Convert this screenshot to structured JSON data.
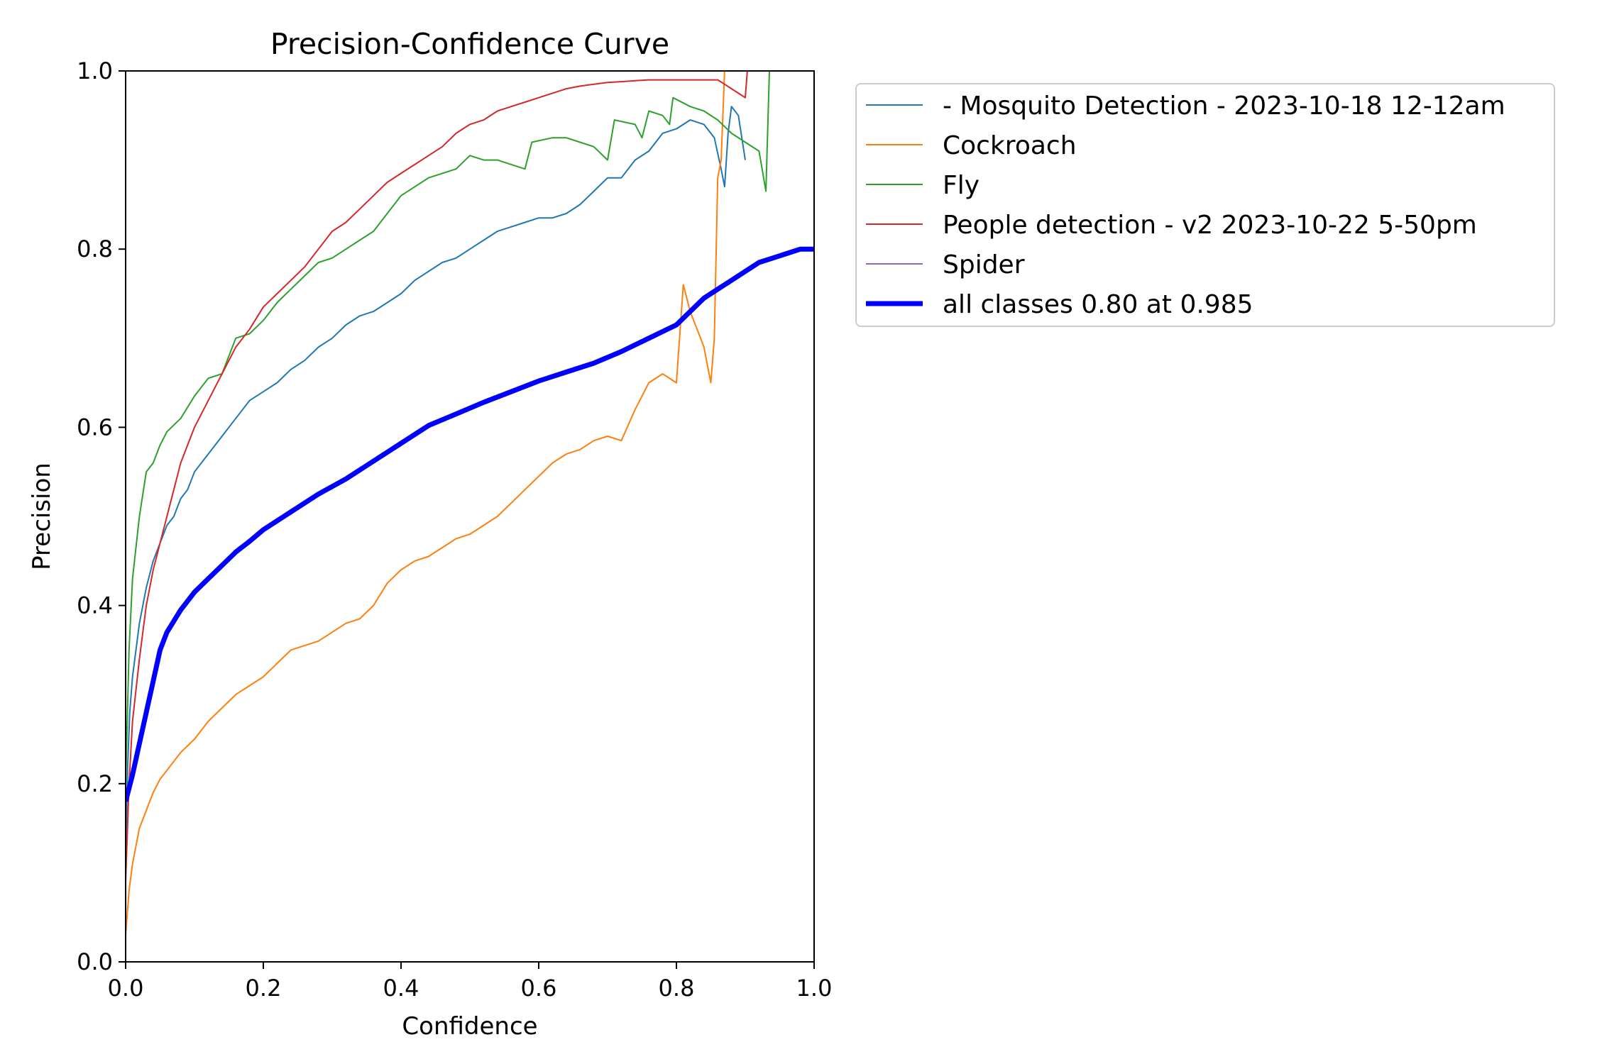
{
  "chart_data": {
    "type": "line",
    "title": "Precision-Confidence Curve",
    "xlabel": "Confidence",
    "ylabel": "Precision",
    "xlim": [
      0,
      1
    ],
    "ylim": [
      0,
      1
    ],
    "xticks": [
      "0.0",
      "0.2",
      "0.4",
      "0.6",
      "0.8",
      "1.0"
    ],
    "yticks": [
      "0.0",
      "0.2",
      "0.4",
      "0.6",
      "0.8",
      "1.0"
    ],
    "grid": false,
    "legend_position": "outside-upper-right",
    "series": [
      {
        "name": "- Mosquito Detection - 2023-10-18 12-12am",
        "color": "#1f77b4",
        "width": 2,
        "points": [
          [
            0,
            0.12
          ],
          [
            0.003,
            0.22
          ],
          [
            0.006,
            0.28
          ],
          [
            0.01,
            0.32
          ],
          [
            0.02,
            0.38
          ],
          [
            0.03,
            0.42
          ],
          [
            0.04,
            0.45
          ],
          [
            0.05,
            0.47
          ],
          [
            0.06,
            0.49
          ],
          [
            0.07,
            0.5
          ],
          [
            0.08,
            0.52
          ],
          [
            0.09,
            0.53
          ],
          [
            0.1,
            0.55
          ],
          [
            0.12,
            0.57
          ],
          [
            0.14,
            0.59
          ],
          [
            0.16,
            0.61
          ],
          [
            0.18,
            0.63
          ],
          [
            0.2,
            0.64
          ],
          [
            0.22,
            0.65
          ],
          [
            0.24,
            0.665
          ],
          [
            0.26,
            0.675
          ],
          [
            0.28,
            0.69
          ],
          [
            0.3,
            0.7
          ],
          [
            0.32,
            0.715
          ],
          [
            0.34,
            0.725
          ],
          [
            0.36,
            0.73
          ],
          [
            0.38,
            0.74
          ],
          [
            0.4,
            0.75
          ],
          [
            0.42,
            0.765
          ],
          [
            0.44,
            0.775
          ],
          [
            0.46,
            0.785
          ],
          [
            0.48,
            0.79
          ],
          [
            0.5,
            0.8
          ],
          [
            0.52,
            0.81
          ],
          [
            0.54,
            0.82
          ],
          [
            0.56,
            0.825
          ],
          [
            0.58,
            0.83
          ],
          [
            0.6,
            0.835
          ],
          [
            0.62,
            0.835
          ],
          [
            0.64,
            0.84
          ],
          [
            0.66,
            0.85
          ],
          [
            0.68,
            0.865
          ],
          [
            0.7,
            0.88
          ],
          [
            0.72,
            0.88
          ],
          [
            0.74,
            0.9
          ],
          [
            0.76,
            0.91
          ],
          [
            0.78,
            0.93
          ],
          [
            0.8,
            0.935
          ],
          [
            0.82,
            0.945
          ],
          [
            0.84,
            0.94
          ],
          [
            0.855,
            0.925
          ],
          [
            0.865,
            0.89
          ],
          [
            0.87,
            0.87
          ],
          [
            0.875,
            0.93
          ],
          [
            0.88,
            0.96
          ],
          [
            0.89,
            0.95
          ],
          [
            0.9,
            0.9
          ]
        ]
      },
      {
        "name": "Cockroach",
        "color": "#ff7f0e",
        "width": 2,
        "points": [
          [
            0,
            0.03
          ],
          [
            0.005,
            0.08
          ],
          [
            0.01,
            0.11
          ],
          [
            0.02,
            0.15
          ],
          [
            0.03,
            0.17
          ],
          [
            0.04,
            0.19
          ],
          [
            0.05,
            0.205
          ],
          [
            0.06,
            0.215
          ],
          [
            0.08,
            0.235
          ],
          [
            0.1,
            0.25
          ],
          [
            0.12,
            0.27
          ],
          [
            0.14,
            0.285
          ],
          [
            0.16,
            0.3
          ],
          [
            0.18,
            0.31
          ],
          [
            0.2,
            0.32
          ],
          [
            0.22,
            0.335
          ],
          [
            0.24,
            0.35
          ],
          [
            0.26,
            0.355
          ],
          [
            0.28,
            0.36
          ],
          [
            0.3,
            0.37
          ],
          [
            0.32,
            0.38
          ],
          [
            0.34,
            0.385
          ],
          [
            0.36,
            0.4
          ],
          [
            0.38,
            0.425
          ],
          [
            0.4,
            0.44
          ],
          [
            0.42,
            0.45
          ],
          [
            0.44,
            0.455
          ],
          [
            0.46,
            0.465
          ],
          [
            0.48,
            0.475
          ],
          [
            0.5,
            0.48
          ],
          [
            0.52,
            0.49
          ],
          [
            0.54,
            0.5
          ],
          [
            0.56,
            0.515
          ],
          [
            0.58,
            0.53
          ],
          [
            0.6,
            0.545
          ],
          [
            0.62,
            0.56
          ],
          [
            0.64,
            0.57
          ],
          [
            0.66,
            0.575
          ],
          [
            0.68,
            0.585
          ],
          [
            0.7,
            0.59
          ],
          [
            0.72,
            0.585
          ],
          [
            0.74,
            0.62
          ],
          [
            0.76,
            0.65
          ],
          [
            0.78,
            0.66
          ],
          [
            0.8,
            0.65
          ],
          [
            0.81,
            0.76
          ],
          [
            0.82,
            0.73
          ],
          [
            0.83,
            0.71
          ],
          [
            0.84,
            0.69
          ],
          [
            0.845,
            0.67
          ],
          [
            0.85,
            0.65
          ],
          [
            0.855,
            0.7
          ],
          [
            0.86,
            0.88
          ],
          [
            0.865,
            0.9
          ],
          [
            0.87,
            1.0
          ]
        ]
      },
      {
        "name": "Fly",
        "color": "#2ca02c",
        "width": 2,
        "points": [
          [
            0,
            0.2
          ],
          [
            0.005,
            0.35
          ],
          [
            0.01,
            0.43
          ],
          [
            0.02,
            0.5
          ],
          [
            0.03,
            0.55
          ],
          [
            0.04,
            0.56
          ],
          [
            0.05,
            0.58
          ],
          [
            0.06,
            0.595
          ],
          [
            0.08,
            0.61
          ],
          [
            0.1,
            0.635
          ],
          [
            0.12,
            0.655
          ],
          [
            0.14,
            0.66
          ],
          [
            0.16,
            0.7
          ],
          [
            0.18,
            0.705
          ],
          [
            0.2,
            0.72
          ],
          [
            0.22,
            0.74
          ],
          [
            0.24,
            0.755
          ],
          [
            0.26,
            0.77
          ],
          [
            0.28,
            0.785
          ],
          [
            0.3,
            0.79
          ],
          [
            0.32,
            0.8
          ],
          [
            0.34,
            0.81
          ],
          [
            0.36,
            0.82
          ],
          [
            0.38,
            0.84
          ],
          [
            0.4,
            0.86
          ],
          [
            0.42,
            0.87
          ],
          [
            0.44,
            0.88
          ],
          [
            0.46,
            0.885
          ],
          [
            0.48,
            0.89
          ],
          [
            0.5,
            0.905
          ],
          [
            0.52,
            0.9
          ],
          [
            0.54,
            0.9
          ],
          [
            0.56,
            0.895
          ],
          [
            0.58,
            0.89
          ],
          [
            0.59,
            0.92
          ],
          [
            0.62,
            0.925
          ],
          [
            0.64,
            0.925
          ],
          [
            0.66,
            0.92
          ],
          [
            0.68,
            0.915
          ],
          [
            0.7,
            0.9
          ],
          [
            0.71,
            0.945
          ],
          [
            0.74,
            0.94
          ],
          [
            0.75,
            0.925
          ],
          [
            0.76,
            0.955
          ],
          [
            0.78,
            0.95
          ],
          [
            0.79,
            0.94
          ],
          [
            0.795,
            0.97
          ],
          [
            0.82,
            0.96
          ],
          [
            0.84,
            0.955
          ],
          [
            0.86,
            0.945
          ],
          [
            0.88,
            0.93
          ],
          [
            0.9,
            0.92
          ],
          [
            0.92,
            0.91
          ],
          [
            0.93,
            0.865
          ],
          [
            0.935,
            1.0
          ]
        ]
      },
      {
        "name": "People detection - v2 2023-10-22 5-50pm",
        "color": "#d62728",
        "width": 2,
        "points": [
          [
            0,
            0.09
          ],
          [
            0.005,
            0.2
          ],
          [
            0.01,
            0.27
          ],
          [
            0.02,
            0.34
          ],
          [
            0.03,
            0.4
          ],
          [
            0.04,
            0.44
          ],
          [
            0.05,
            0.47
          ],
          [
            0.06,
            0.5
          ],
          [
            0.07,
            0.53
          ],
          [
            0.08,
            0.56
          ],
          [
            0.09,
            0.58
          ],
          [
            0.1,
            0.6
          ],
          [
            0.12,
            0.63
          ],
          [
            0.14,
            0.66
          ],
          [
            0.16,
            0.69
          ],
          [
            0.18,
            0.71
          ],
          [
            0.2,
            0.735
          ],
          [
            0.22,
            0.75
          ],
          [
            0.24,
            0.765
          ],
          [
            0.26,
            0.78
          ],
          [
            0.28,
            0.8
          ],
          [
            0.3,
            0.82
          ],
          [
            0.32,
            0.83
          ],
          [
            0.34,
            0.845
          ],
          [
            0.36,
            0.86
          ],
          [
            0.38,
            0.875
          ],
          [
            0.4,
            0.885
          ],
          [
            0.42,
            0.895
          ],
          [
            0.44,
            0.905
          ],
          [
            0.46,
            0.915
          ],
          [
            0.48,
            0.93
          ],
          [
            0.5,
            0.94
          ],
          [
            0.52,
            0.945
          ],
          [
            0.54,
            0.955
          ],
          [
            0.56,
            0.96
          ],
          [
            0.58,
            0.965
          ],
          [
            0.6,
            0.97
          ],
          [
            0.62,
            0.975
          ],
          [
            0.64,
            0.98
          ],
          [
            0.66,
            0.983
          ],
          [
            0.68,
            0.985
          ],
          [
            0.7,
            0.987
          ],
          [
            0.72,
            0.988
          ],
          [
            0.74,
            0.989
          ],
          [
            0.76,
            0.99
          ],
          [
            0.78,
            0.99
          ],
          [
            0.8,
            0.99
          ],
          [
            0.82,
            0.99
          ],
          [
            0.84,
            0.99
          ],
          [
            0.86,
            0.99
          ],
          [
            0.87,
            0.985
          ],
          [
            0.88,
            0.98
          ],
          [
            0.89,
            0.975
          ],
          [
            0.9,
            0.97
          ],
          [
            0.903,
            1.0
          ]
        ]
      },
      {
        "name": "Spider",
        "color": "#9467bd",
        "width": 2,
        "points": []
      },
      {
        "name": "all classes 0.80 at 0.985",
        "color": "#0000ff",
        "width": 7,
        "points": [
          [
            0,
            0.18
          ],
          [
            0.01,
            0.21
          ],
          [
            0.02,
            0.245
          ],
          [
            0.03,
            0.28
          ],
          [
            0.04,
            0.315
          ],
          [
            0.05,
            0.35
          ],
          [
            0.06,
            0.37
          ],
          [
            0.08,
            0.395
          ],
          [
            0.1,
            0.415
          ],
          [
            0.12,
            0.43
          ],
          [
            0.14,
            0.445
          ],
          [
            0.16,
            0.46
          ],
          [
            0.18,
            0.472
          ],
          [
            0.2,
            0.485
          ],
          [
            0.24,
            0.505
          ],
          [
            0.28,
            0.525
          ],
          [
            0.32,
            0.542
          ],
          [
            0.36,
            0.562
          ],
          [
            0.4,
            0.582
          ],
          [
            0.44,
            0.602
          ],
          [
            0.48,
            0.615
          ],
          [
            0.52,
            0.628
          ],
          [
            0.56,
            0.64
          ],
          [
            0.6,
            0.652
          ],
          [
            0.64,
            0.662
          ],
          [
            0.68,
            0.672
          ],
          [
            0.72,
            0.685
          ],
          [
            0.76,
            0.7
          ],
          [
            0.8,
            0.715
          ],
          [
            0.82,
            0.73
          ],
          [
            0.84,
            0.745
          ],
          [
            0.86,
            0.755
          ],
          [
            0.88,
            0.765
          ],
          [
            0.9,
            0.775
          ],
          [
            0.92,
            0.785
          ],
          [
            0.94,
            0.79
          ],
          [
            0.96,
            0.795
          ],
          [
            0.98,
            0.8
          ],
          [
            1.0,
            0.8
          ]
        ]
      }
    ]
  }
}
